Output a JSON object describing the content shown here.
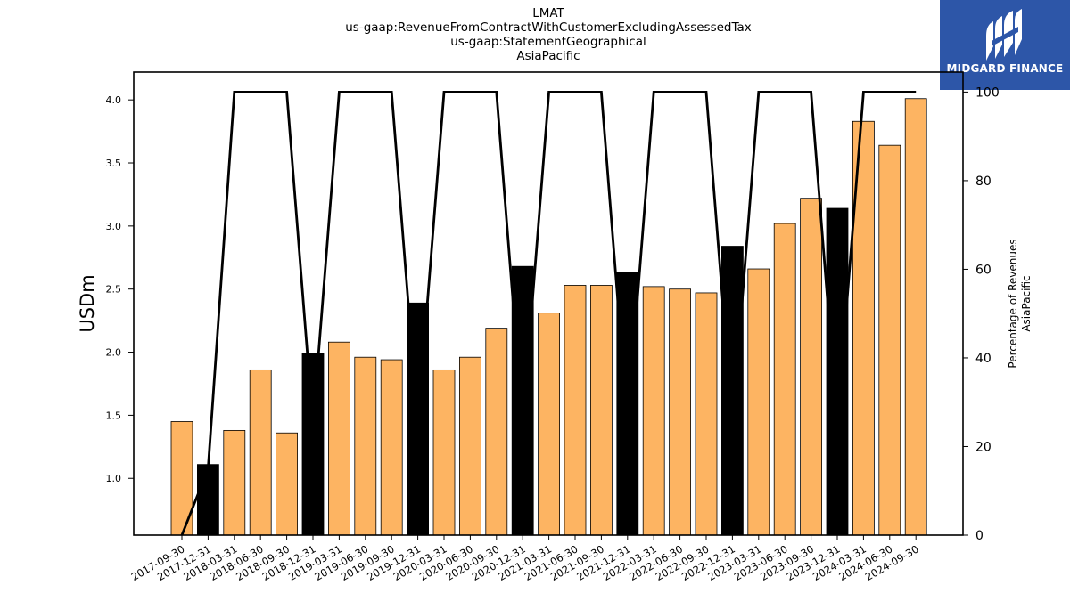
{
  "header": {
    "lines": [
      "LMAT",
      "us-gaap:RevenueFromContractWithCustomerExcludingAssessedTax",
      "us-gaap:StatementGeographical",
      "AsiaPacific"
    ]
  },
  "logo": {
    "text": "MIDGARD FINANCE",
    "icon": "midgard-logo-icon",
    "background": "#2d56a8"
  },
  "colors": {
    "bar_default": "#fdb462",
    "bar_highlight": "#000000",
    "line": "#000000"
  },
  "chart_data": {
    "type": "bar",
    "categories": [
      "2017-09-30",
      "2017-12-31",
      "2018-03-31",
      "2018-06-30",
      "2018-09-30",
      "2018-12-31",
      "2019-03-31",
      "2019-06-30",
      "2019-09-30",
      "2019-12-31",
      "2020-03-31",
      "2020-06-30",
      "2020-09-30",
      "2020-12-31",
      "2021-03-31",
      "2021-06-30",
      "2021-09-30",
      "2021-12-31",
      "2022-03-31",
      "2022-06-30",
      "2022-09-30",
      "2022-12-31",
      "2023-03-31",
      "2023-06-30",
      "2023-09-30",
      "2023-12-31",
      "2024-03-31",
      "2024-06-30",
      "2024-09-30"
    ],
    "series": [
      {
        "values": [
          1.45,
          1.11,
          1.38,
          1.86,
          1.36,
          1.99,
          2.08,
          1.96,
          1.94,
          2.39,
          1.86,
          1.96,
          2.19,
          2.68,
          2.31,
          2.53,
          2.53,
          2.63,
          2.52,
          2.5,
          2.47,
          2.84,
          2.66,
          3.02,
          3.22,
          3.14,
          3.83,
          3.64,
          4.01
        ],
        "highlight": [
          false,
          true,
          false,
          false,
          false,
          true,
          false,
          false,
          false,
          true,
          false,
          false,
          false,
          true,
          false,
          false,
          false,
          true,
          false,
          false,
          false,
          true,
          false,
          false,
          false,
          true,
          false,
          false,
          false
        ],
        "axis": "left"
      },
      {
        "type": "line",
        "values": [
          0,
          15,
          100,
          100,
          100,
          25,
          100,
          100,
          100,
          25,
          100,
          100,
          100,
          25,
          100,
          100,
          100,
          25,
          100,
          100,
          100,
          25,
          100,
          100,
          100,
          25,
          100,
          100,
          100
        ],
        "axis": "right"
      }
    ],
    "ylabel": "USDm",
    "ylabel_right": [
      "Percentage of Revenues",
      "AsiaPacific"
    ],
    "ylim": [
      0.55,
      4.22
    ],
    "ylim_right": [
      0,
      104.5
    ],
    "yticks": [
      "1.0",
      "1.5",
      "2.0",
      "2.5",
      "3.0",
      "3.5",
      "4.0"
    ],
    "yticks_right": [
      "0",
      "20",
      "40",
      "60",
      "80",
      "100"
    ],
    "grid": false
  }
}
